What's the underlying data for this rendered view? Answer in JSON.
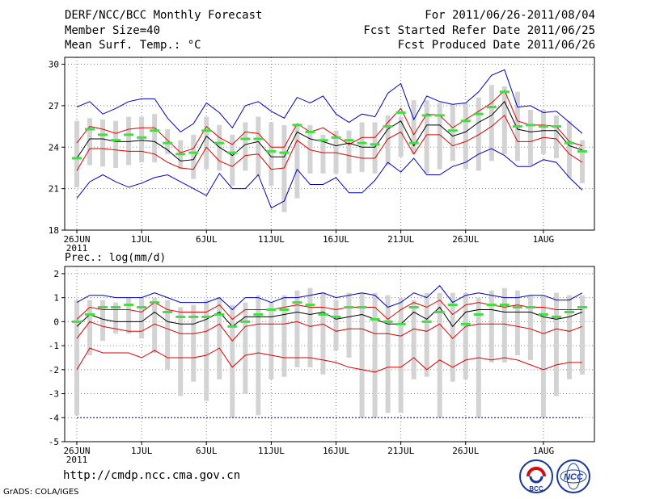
{
  "header": {
    "title": "DERF/NCC/BCC Monthly Forecast",
    "member_size": "Member Size=40",
    "variable": "Mean Surf. Temp.: °C",
    "period": "For 2011/06/26-2011/08/04",
    "start_date": "Fcst Started Refer Date 2011/06/25",
    "produced_date": "Fcst Produced Date 2011/06/26"
  },
  "footer": {
    "url": "http://cmdp.ncc.cma.gov.cn",
    "software": "GrADS: COLA/IGES",
    "logo_bcc_text": "BCC",
    "logo_ncc_text": "NCC"
  },
  "colors": {
    "background": "#ffffff",
    "box": "#d3d3d3",
    "mean": "#000000",
    "spread": "#e00000",
    "envelope": "#0000c0",
    "marker": "#44dd44",
    "grid": "#808080"
  },
  "chart_data": [
    {
      "type": "line",
      "title": "Mean Surf. Temp.: °C",
      "xlabel": "",
      "ylabel": "",
      "ylim": [
        18,
        30.5
      ],
      "yticks": [
        18,
        21,
        24,
        27,
        30
      ],
      "x_ticks": [
        {
          "day": 0,
          "label": "26JUN",
          "sub": "2011"
        },
        {
          "day": 5,
          "label": "1JUL"
        },
        {
          "day": 10,
          "label": "6JUL"
        },
        {
          "day": 15,
          "label": "11JUL"
        },
        {
          "day": 20,
          "label": "16JUL"
        },
        {
          "day": 25,
          "label": "21JUL"
        },
        {
          "day": 30,
          "label": "26JUL"
        },
        {
          "day": 36,
          "label": "1AUG"
        }
      ],
      "days": [
        0,
        1,
        2,
        3,
        4,
        5,
        6,
        7,
        8,
        9,
        10,
        11,
        12,
        13,
        14,
        15,
        16,
        17,
        18,
        19,
        20,
        21,
        22,
        23,
        24,
        25,
        26,
        27,
        28,
        29,
        30,
        31,
        32,
        33,
        34,
        35,
        36,
        37,
        38,
        39
      ],
      "box_top": [
        25.9,
        26.1,
        26.0,
        25.9,
        26.2,
        26.2,
        26.4,
        25.3,
        24.5,
        24.9,
        26.2,
        25.6,
        24.9,
        25.8,
        26.2,
        25.8,
        25.6,
        25.7,
        25.6,
        24.9,
        25.2,
        25.2,
        25.8,
        25.8,
        26.3,
        26.2,
        27.4,
        27.4,
        27.2,
        27.1,
        27.2,
        27.6,
        28.5,
        28.4,
        28.0,
        26.7,
        26.7,
        26.3,
        25.9,
        24.5
      ],
      "box_bot": [
        21.1,
        22.7,
        22.6,
        22.5,
        22.7,
        22.9,
        22.9,
        23.5,
        22.4,
        21.7,
        22.4,
        22.3,
        21.2,
        22.3,
        21.9,
        21.2,
        19.3,
        20.3,
        22.1,
        22.1,
        22.1,
        22.1,
        22.2,
        22.1,
        22.7,
        23.3,
        23.5,
        22.1,
        22.4,
        23.0,
        22.4,
        22.3,
        23.0,
        23.5,
        23.0,
        22.7,
        23.5,
        23.2,
        21.8,
        21.4
      ],
      "upper_env": [
        26.9,
        27.3,
        26.4,
        26.8,
        27.3,
        27.5,
        27.5,
        26.1,
        25.1,
        25.7,
        27.2,
        26.5,
        25.4,
        27.0,
        27.3,
        26.6,
        26.1,
        27.6,
        27.2,
        27.7,
        26.4,
        25.8,
        26.4,
        26.2,
        27.9,
        28.6,
        26.0,
        27.7,
        27.3,
        27.1,
        27.2,
        28.0,
        29.2,
        29.6,
        26.9,
        27.0,
        26.5,
        26.6,
        25.8,
        25.0
      ],
      "lower_env": [
        20.3,
        21.5,
        22.0,
        21.5,
        21.1,
        21.4,
        21.8,
        22.0,
        21.5,
        21.0,
        20.5,
        22.1,
        21.0,
        21.0,
        22.0,
        19.6,
        20.1,
        22.4,
        21.3,
        21.3,
        21.8,
        20.7,
        20.7,
        21.6,
        22.9,
        22.2,
        23.2,
        22.0,
        22.0,
        22.6,
        22.9,
        23.5,
        23.9,
        23.4,
        22.6,
        22.6,
        23.1,
        22.9,
        21.8,
        20.9
      ],
      "upper_red": [
        24.3,
        25.5,
        25.3,
        25.0,
        25.3,
        25.4,
        25.4,
        24.5,
        23.6,
        23.9,
        25.5,
        24.7,
        24.2,
        25.1,
        25.0,
        24.0,
        24.0,
        25.7,
        25.1,
        25.4,
        24.8,
        24.2,
        24.7,
        24.7,
        25.8,
        26.8,
        24.9,
        26.4,
        26.3,
        25.4,
        26.0,
        26.6,
        27.2,
        28.1,
        25.9,
        25.6,
        25.6,
        25.5,
        24.4,
        24.1
      ],
      "mean": [
        23.2,
        24.6,
        24.6,
        24.4,
        24.4,
        24.5,
        24.4,
        23.8,
        23.0,
        23.1,
        24.8,
        24.0,
        23.4,
        24.2,
        24.4,
        23.3,
        23.3,
        25.1,
        24.6,
        24.4,
        24.1,
        24.3,
        24.0,
        24.0,
        25.3,
        25.9,
        24.1,
        25.6,
        25.6,
        24.8,
        25.1,
        25.8,
        26.3,
        27.3,
        25.3,
        25.1,
        25.2,
        25.2,
        24.1,
        23.8
      ],
      "lower_red": [
        22.3,
        23.9,
        23.9,
        23.8,
        23.7,
        23.7,
        23.5,
        22.9,
        22.5,
        22.4,
        24.0,
        23.0,
        22.6,
        23.4,
        23.5,
        22.4,
        22.5,
        24.5,
        23.8,
        23.6,
        23.6,
        23.4,
        23.2,
        23.2,
        24.6,
        25.1,
        23.5,
        24.9,
        24.9,
        24.1,
        24.4,
        24.9,
        25.5,
        26.3,
        24.4,
        24.4,
        24.7,
        24.6,
        23.5,
        22.9
      ],
      "marker": [
        23.2,
        25.3,
        24.9,
        24.5,
        24.9,
        24.7,
        25.2,
        24.3,
        23.5,
        23.6,
        25.2,
        24.3,
        23.6,
        24.6,
        24.6,
        23.7,
        23.6,
        25.6,
        25.1,
        24.5,
        24.7,
        24.5,
        24.3,
        24.2,
        25.5,
        26.5,
        24.3,
        26.3,
        26.3,
        25.2,
        25.9,
        26.4,
        26.9,
        28.0,
        25.5,
        25.6,
        25.5,
        25.5,
        24.3,
        23.7
      ]
    },
    {
      "type": "line",
      "title": "Prec.: log(mm/d)",
      "xlabel": "",
      "ylabel": "",
      "ylim": [
        -5,
        2.3
      ],
      "yticks": [
        -5,
        -4,
        -3,
        -2,
        -1,
        0,
        1,
        2
      ],
      "x_ticks": [
        {
          "day": 0,
          "label": "26JUN",
          "sub": "2011"
        },
        {
          "day": 5,
          "label": "1JUL"
        },
        {
          "day": 10,
          "label": "6JUL"
        },
        {
          "day": 15,
          "label": "11JUL"
        },
        {
          "day": 20,
          "label": "16JUL"
        },
        {
          "day": 25,
          "label": "21JUL"
        },
        {
          "day": 30,
          "label": "26JUL"
        },
        {
          "day": 36,
          "label": "1AUG"
        }
      ],
      "days": [
        0,
        1,
        2,
        3,
        4,
        5,
        6,
        7,
        8,
        9,
        10,
        11,
        12,
        13,
        14,
        15,
        16,
        17,
        18,
        19,
        20,
        21,
        22,
        23,
        24,
        25,
        26,
        27,
        28,
        29,
        30,
        31,
        32,
        33,
        34,
        35,
        36,
        37,
        38,
        39
      ],
      "box_top": [
        0.9,
        0.9,
        0.9,
        0.8,
        1.0,
        1.0,
        1.0,
        0.9,
        0.6,
        0.7,
        0.9,
        1.0,
        0.7,
        0.8,
        1.1,
        0.8,
        1.1,
        1.3,
        1.4,
        1.2,
        0.9,
        1.2,
        1.2,
        1.2,
        1.1,
        1.0,
        0.9,
        1.2,
        1.2,
        1.2,
        1.2,
        1.0,
        1.3,
        1.4,
        1.3,
        1.1,
        1.1,
        1.2,
        1.1,
        1.1
      ],
      "box_bot": [
        -3.9,
        -1.4,
        -0.8,
        -0.5,
        -0.5,
        -0.7,
        -1.3,
        -2.0,
        -3.1,
        -2.5,
        -3.3,
        -2.4,
        -4.0,
        -3.0,
        -3.9,
        -2.4,
        -2.3,
        -1.9,
        -1.9,
        -2.2,
        -1.2,
        -1.5,
        -4.0,
        -4.0,
        -3.8,
        -3.8,
        -2.4,
        -2.3,
        -4.0,
        -2.5,
        -2.4,
        -4.0,
        -1.7,
        -1.7,
        -1.4,
        -1.6,
        -4.0,
        -3.1,
        -2.4,
        -2.2
      ],
      "upper_env": [
        0.8,
        1.1,
        1.1,
        1.0,
        1.0,
        1.0,
        1.2,
        1.0,
        0.8,
        0.8,
        0.8,
        1.0,
        0.5,
        1.0,
        1.0,
        0.8,
        1.0,
        1.0,
        1.1,
        1.2,
        1.0,
        1.1,
        1.2,
        1.1,
        0.6,
        0.8,
        1.2,
        1.0,
        1.5,
        0.8,
        1.1,
        1.2,
        1.1,
        1.0,
        1.0,
        1.1,
        1.1,
        0.9,
        0.9,
        1.2
      ],
      "lower_env": [
        -4.0,
        -4.0,
        -4.0,
        -4.0,
        -4.0,
        -4.0,
        -4.0,
        -4.0,
        -4.0,
        -4.0,
        -4.0,
        -4.0,
        -4.0,
        -4.0,
        -4.0,
        -4.0,
        -4.0,
        -4.0,
        -4.0,
        -4.0,
        -4.0,
        -4.0,
        -4.0,
        -4.0,
        -4.0,
        -4.0,
        -4.0,
        -4.0,
        -4.0,
        -4.0,
        -4.0,
        -4.0,
        -4.0,
        -4.0,
        -4.0,
        -4.0,
        -4.0,
        -4.0,
        -4.0,
        -4.0
      ],
      "upper_red": [
        0.1,
        0.6,
        0.5,
        0.5,
        0.5,
        0.4,
        0.8,
        0.5,
        0.4,
        0.4,
        0.4,
        0.7,
        0.1,
        0.5,
        0.5,
        0.5,
        0.6,
        0.7,
        0.6,
        0.6,
        0.5,
        0.6,
        0.6,
        0.6,
        0.1,
        0.5,
        0.8,
        0.6,
        0.9,
        0.3,
        0.7,
        0.8,
        0.7,
        0.6,
        0.7,
        0.6,
        0.6,
        0.5,
        0.5,
        0.5
      ],
      "mean": [
        -0.2,
        0.3,
        0.1,
        0.0,
        0.0,
        0.0,
        0.4,
        0.0,
        -0.1,
        -0.1,
        0.1,
        0.4,
        -0.2,
        0.2,
        0.2,
        0.2,
        0.3,
        0.4,
        0.3,
        0.4,
        0.1,
        0.2,
        0.3,
        0.1,
        -0.1,
        -0.1,
        0.4,
        0.1,
        0.6,
        -0.2,
        0.4,
        0.5,
        0.5,
        0.4,
        0.4,
        0.4,
        0.2,
        0.1,
        0.2,
        0.4
      ],
      "lower_red": [
        -0.7,
        0.0,
        -0.2,
        -0.3,
        -0.4,
        -0.4,
        -0.1,
        -0.3,
        -0.5,
        -0.5,
        -0.4,
        -0.1,
        -0.8,
        -0.2,
        -0.1,
        -0.1,
        -0.1,
        0.0,
        -0.2,
        -0.1,
        -0.4,
        -0.3,
        -0.3,
        -0.5,
        -0.5,
        -0.6,
        -0.3,
        -0.4,
        -0.1,
        -0.7,
        -0.2,
        -0.1,
        -0.1,
        -0.1,
        -0.2,
        -0.3,
        -0.5,
        -0.3,
        -0.4,
        -0.2
      ],
      "lower_red2": [
        -2.0,
        -1.1,
        -1.3,
        -1.3,
        -1.3,
        -1.5,
        -1.2,
        -1.5,
        -1.5,
        -1.5,
        -1.4,
        -1.1,
        -1.9,
        -1.4,
        -1.3,
        -1.4,
        -1.5,
        -1.5,
        -1.5,
        -1.6,
        -1.7,
        -1.9,
        -2.0,
        -2.1,
        -1.9,
        -1.9,
        -1.5,
        -2.0,
        -1.6,
        -1.9,
        -1.6,
        -1.5,
        -1.6,
        -1.5,
        -1.6,
        -1.8,
        -2.0,
        -1.8,
        -1.7,
        -1.7
      ],
      "marker": [
        0.0,
        0.3,
        0.6,
        0.6,
        0.7,
        0.6,
        0.8,
        0.4,
        0.2,
        0.2,
        0.2,
        0.3,
        -0.2,
        0.0,
        0.3,
        0.5,
        0.5,
        0.8,
        0.7,
        0.3,
        0.2,
        0.6,
        0.6,
        0.1,
        0.0,
        -0.1,
        0.6,
        0.0,
        0.4,
        0.7,
        -0.1,
        0.3,
        0.7,
        0.7,
        0.6,
        0.6,
        0.3,
        0.2,
        0.4,
        0.6
      ]
    }
  ]
}
